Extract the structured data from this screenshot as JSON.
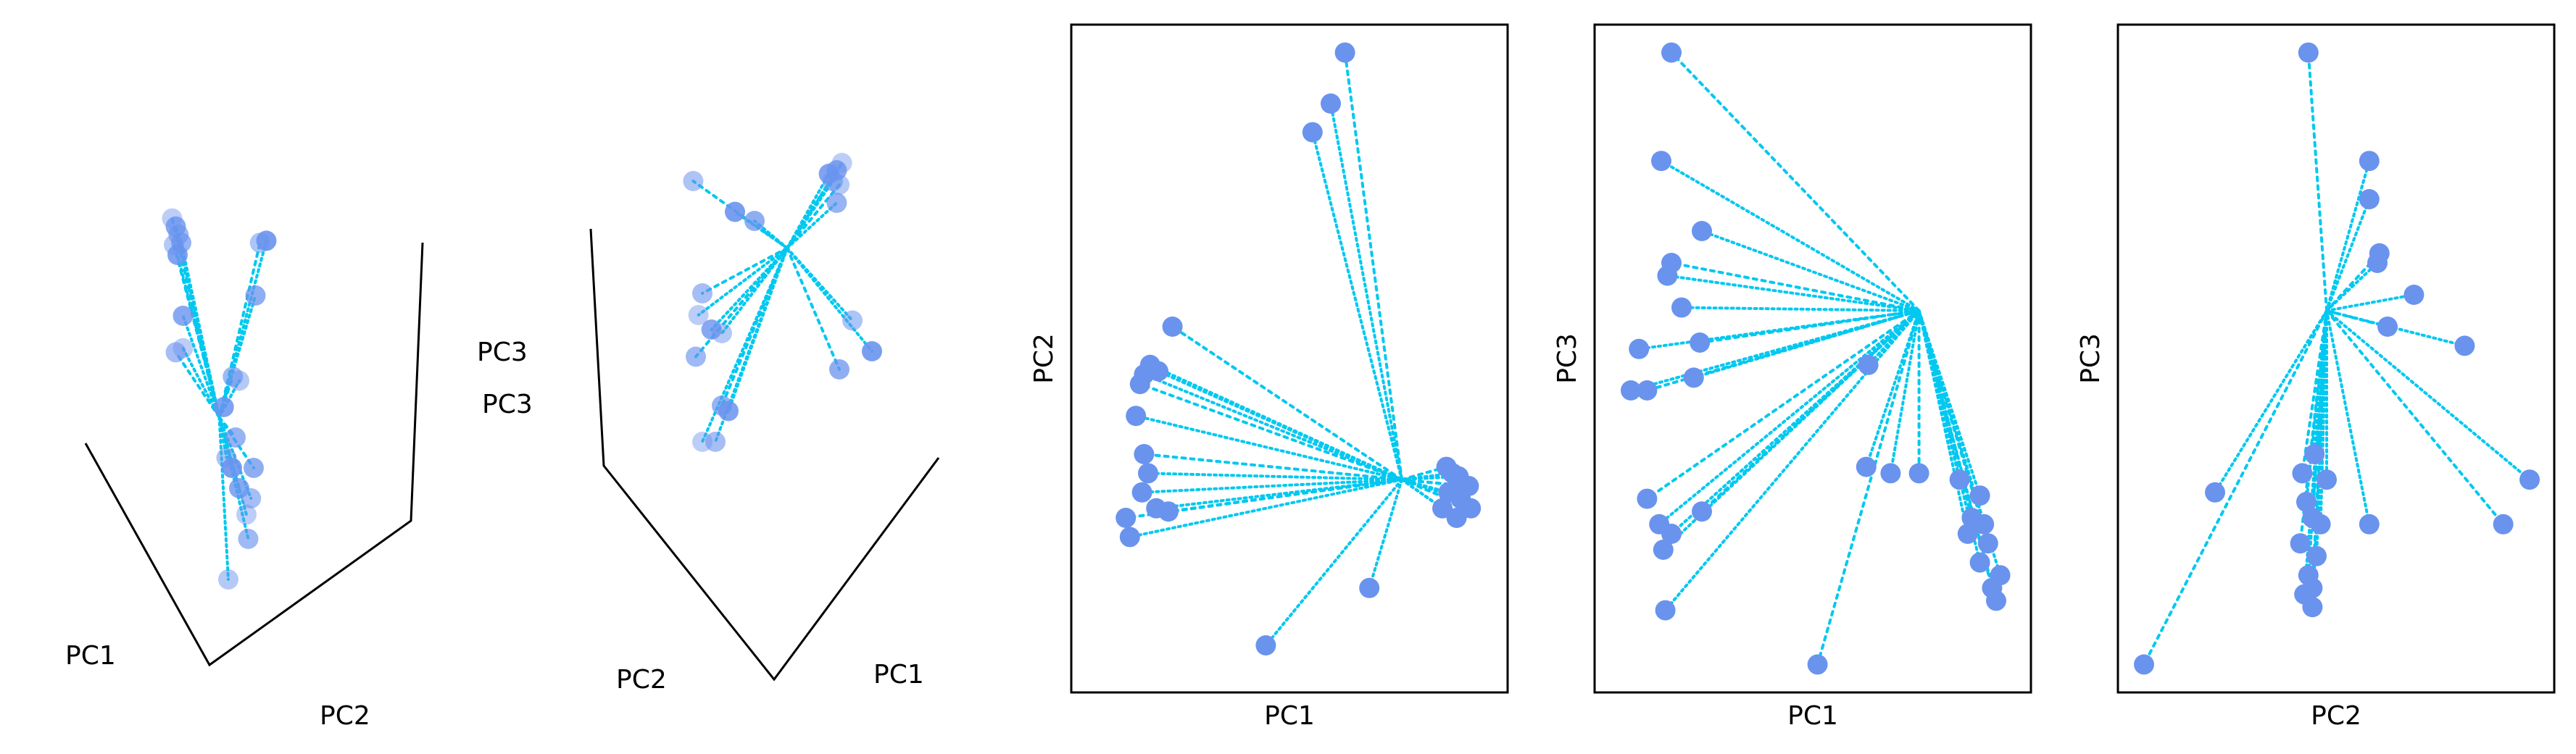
{
  "chart_data": [
    {
      "type": "scatter",
      "title": "",
      "xlabel": "PC1",
      "ylabel": "PC2",
      "zlabel": "PC3",
      "colors": {
        "trajectory": "#00c8f0",
        "endpoint": "#6a93ee"
      },
      "xlim": [
        -1,
        1
      ],
      "ylim": [
        -1,
        1
      ],
      "view": "3d",
      "endpoints": [
        {
          "x": -0.62,
          "y": 0.78
        },
        {
          "x": -0.58,
          "y": 0.74
        },
        {
          "x": -0.55,
          "y": 0.7
        },
        {
          "x": -0.6,
          "y": 0.65
        },
        {
          "x": -0.56,
          "y": 0.6
        },
        {
          "x": -0.52,
          "y": 0.66
        },
        {
          "x": 0.35,
          "y": 0.66
        },
        {
          "x": 0.42,
          "y": 0.67
        },
        {
          "x": 0.3,
          "y": 0.4
        },
        {
          "x": -0.58,
          "y": 0.12
        },
        {
          "x": -0.5,
          "y": 0.14
        },
        {
          "x": -0.5,
          "y": 0.3
        },
        {
          "x": 0.05,
          "y": 0.0
        },
        {
          "x": 0.12,
          "y": -0.02
        },
        {
          "x": -0.05,
          "y": -0.15
        },
        {
          "x": 0.08,
          "y": -0.3
        },
        {
          "x": -0.02,
          "y": -0.4
        },
        {
          "x": 0.04,
          "y": -0.45
        },
        {
          "x": 0.28,
          "y": -0.45
        },
        {
          "x": 0.25,
          "y": -0.6
        },
        {
          "x": 0.2,
          "y": -0.68
        },
        {
          "x": 0.12,
          "y": -0.55
        },
        {
          "x": 0.22,
          "y": -0.8
        },
        {
          "x": 0.0,
          "y": -1.0
        }
      ]
    },
    {
      "type": "scatter",
      "title": "",
      "xlabel": "PC1",
      "ylabel": "PC2",
      "zlabel": "PC3",
      "colors": {
        "trajectory": "#00c8f0",
        "endpoint": "#6a93ee"
      },
      "xlim": [
        -1,
        1
      ],
      "ylim": [
        -1,
        1
      ],
      "view": "3d",
      "endpoints": [
        {
          "x": 0.62,
          "y": 0.82
        },
        {
          "x": 0.58,
          "y": 0.78
        },
        {
          "x": 0.55,
          "y": 0.72
        },
        {
          "x": 0.6,
          "y": 0.7
        },
        {
          "x": 0.52,
          "y": 0.76
        },
        {
          "x": 0.58,
          "y": 0.6
        },
        {
          "x": -0.52,
          "y": 0.72
        },
        {
          "x": -0.2,
          "y": 0.55
        },
        {
          "x": -0.05,
          "y": 0.5
        },
        {
          "x": -0.45,
          "y": 0.1
        },
        {
          "x": -0.48,
          "y": -0.02
        },
        {
          "x": -0.38,
          "y": -0.1
        },
        {
          "x": -0.5,
          "y": -0.25
        },
        {
          "x": -0.3,
          "y": -0.12
        },
        {
          "x": -0.25,
          "y": -0.55
        },
        {
          "x": -0.3,
          "y": -0.52
        },
        {
          "x": 0.7,
          "y": -0.05
        },
        {
          "x": 0.85,
          "y": -0.22
        },
        {
          "x": 0.6,
          "y": -0.32
        },
        {
          "x": -0.35,
          "y": -0.72
        },
        {
          "x": -0.45,
          "y": -0.72
        }
      ]
    },
    {
      "type": "scatter",
      "title": "",
      "xlabel": "PC1",
      "ylabel": "PC2",
      "colors": {
        "trajectory": "#00c8f0",
        "endpoint": "#6a93ee"
      },
      "xlim": [
        -1,
        1
      ],
      "ylim": [
        -1,
        1
      ],
      "grid": false,
      "endpoints": [
        {
          "x": 0.27,
          "y": 0.96
        },
        {
          "x": 0.2,
          "y": 0.8
        },
        {
          "x": 0.11,
          "y": 0.71
        },
        {
          "x": -0.58,
          "y": 0.1
        },
        {
          "x": -0.69,
          "y": -0.02
        },
        {
          "x": -0.72,
          "y": -0.05
        },
        {
          "x": -0.74,
          "y": -0.08
        },
        {
          "x": -0.65,
          "y": -0.04
        },
        {
          "x": -0.76,
          "y": -0.18
        },
        {
          "x": -0.72,
          "y": -0.3
        },
        {
          "x": -0.7,
          "y": -0.36
        },
        {
          "x": -0.73,
          "y": -0.42
        },
        {
          "x": -0.81,
          "y": -0.5
        },
        {
          "x": -0.79,
          "y": -0.56
        },
        {
          "x": -0.66,
          "y": -0.47
        },
        {
          "x": -0.6,
          "y": -0.48
        },
        {
          "x": 0.39,
          "y": -0.72
        },
        {
          "x": -0.12,
          "y": -0.9
        },
        {
          "x": 0.77,
          "y": -0.34
        },
        {
          "x": 0.8,
          "y": -0.36
        },
        {
          "x": 0.83,
          "y": -0.37
        },
        {
          "x": 0.86,
          "y": -0.4
        },
        {
          "x": 0.78,
          "y": -0.42
        },
        {
          "x": 0.84,
          "y": -0.44
        },
        {
          "x": 0.88,
          "y": -0.4
        },
        {
          "x": 0.75,
          "y": -0.47
        },
        {
          "x": 0.82,
          "y": -0.5
        },
        {
          "x": 0.89,
          "y": -0.47
        }
      ]
    },
    {
      "type": "scatter",
      "title": "",
      "xlabel": "PC1",
      "ylabel": "PC3",
      "colors": {
        "trajectory": "#00c8f0",
        "endpoint": "#6a93ee"
      },
      "xlim": [
        -1,
        1
      ],
      "ylim": [
        -1,
        1
      ],
      "grid": false,
      "endpoints": [
        {
          "x": -0.7,
          "y": 0.96
        },
        {
          "x": -0.75,
          "y": 0.62
        },
        {
          "x": -0.55,
          "y": 0.4
        },
        {
          "x": -0.7,
          "y": 0.3
        },
        {
          "x": -0.72,
          "y": 0.26
        },
        {
          "x": -0.65,
          "y": 0.16
        },
        {
          "x": -0.56,
          "y": 0.05
        },
        {
          "x": -0.86,
          "y": 0.03
        },
        {
          "x": -0.9,
          "y": -0.1
        },
        {
          "x": -0.82,
          "y": -0.1
        },
        {
          "x": -0.59,
          "y": -0.06
        },
        {
          "x": 0.27,
          "y": -0.02
        },
        {
          "x": -0.82,
          "y": -0.44
        },
        {
          "x": -0.76,
          "y": -0.52
        },
        {
          "x": -0.7,
          "y": -0.55
        },
        {
          "x": -0.55,
          "y": -0.48
        },
        {
          "x": -0.74,
          "y": -0.6
        },
        {
          "x": -0.73,
          "y": -0.79
        },
        {
          "x": 0.02,
          "y": -0.96
        },
        {
          "x": 0.26,
          "y": -0.34
        },
        {
          "x": 0.38,
          "y": -0.36
        },
        {
          "x": 0.52,
          "y": -0.36
        },
        {
          "x": 0.72,
          "y": -0.38
        },
        {
          "x": 0.82,
          "y": -0.43
        },
        {
          "x": 0.78,
          "y": -0.5
        },
        {
          "x": 0.84,
          "y": -0.52
        },
        {
          "x": 0.76,
          "y": -0.55
        },
        {
          "x": 0.86,
          "y": -0.58
        },
        {
          "x": 0.82,
          "y": -0.64
        },
        {
          "x": 0.92,
          "y": -0.68
        },
        {
          "x": 0.88,
          "y": -0.72
        },
        {
          "x": 0.9,
          "y": -0.76
        }
      ]
    },
    {
      "type": "scatter",
      "title": "",
      "xlabel": "PC2",
      "ylabel": "PC3",
      "colors": {
        "trajectory": "#00c8f0",
        "endpoint": "#6a93ee"
      },
      "xlim": [
        -1,
        1
      ],
      "ylim": [
        -1,
        1
      ],
      "grid": false,
      "endpoints": [
        {
          "x": -0.14,
          "y": 0.96
        },
        {
          "x": 0.16,
          "y": 0.62
        },
        {
          "x": 0.16,
          "y": 0.5
        },
        {
          "x": 0.21,
          "y": 0.33
        },
        {
          "x": 0.2,
          "y": 0.3
        },
        {
          "x": 0.38,
          "y": 0.2
        },
        {
          "x": 0.25,
          "y": 0.1
        },
        {
          "x": 0.63,
          "y": 0.04
        },
        {
          "x": -0.11,
          "y": -0.3
        },
        {
          "x": -0.17,
          "y": -0.36
        },
        {
          "x": -0.05,
          "y": -0.38
        },
        {
          "x": -0.15,
          "y": -0.45
        },
        {
          "x": -0.12,
          "y": -0.5
        },
        {
          "x": -0.08,
          "y": -0.52
        },
        {
          "x": 0.16,
          "y": -0.52
        },
        {
          "x": -0.18,
          "y": -0.58
        },
        {
          "x": -0.1,
          "y": -0.62
        },
        {
          "x": -0.14,
          "y": -0.68
        },
        {
          "x": -0.12,
          "y": -0.72
        },
        {
          "x": -0.16,
          "y": -0.74
        },
        {
          "x": -0.6,
          "y": -0.42
        },
        {
          "x": 0.82,
          "y": -0.52
        },
        {
          "x": 0.95,
          "y": -0.38
        },
        {
          "x": -0.12,
          "y": -0.78
        },
        {
          "x": -0.95,
          "y": -0.96
        }
      ]
    }
  ]
}
